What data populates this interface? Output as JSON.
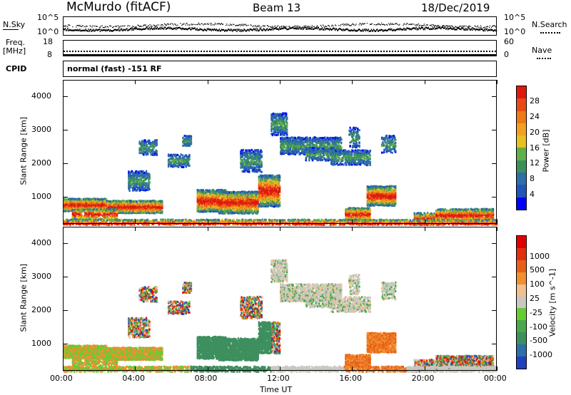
{
  "header": {
    "station": "McMurdo (fitACF)",
    "beam": "Beam 13",
    "date": "18/Dec/2019"
  },
  "top_panels": {
    "nsky_label": "N.Sky",
    "nsky_ticks": [
      "10^5",
      "10^0"
    ],
    "nsearch_label": "N.Search",
    "nsearch_ticks": [
      "10^5",
      "10^0"
    ],
    "freq_label_line1": "Freq.",
    "freq_label_line2": "[MHz]",
    "freq_ticks": [
      "18",
      "8"
    ],
    "nave_label": "Nave",
    "nave_ticks": [
      "60",
      "0"
    ],
    "cpid_label": "CPID",
    "cpid_text": "normal (fast) -151 RF"
  },
  "chart_data": [
    {
      "type": "heatmap",
      "name": "power",
      "ylabel": "Slant Range [km]",
      "yticks": [
        1000,
        2000,
        3000,
        4000
      ],
      "ylim": [
        180,
        4500
      ],
      "x_ticks": [
        "00:00",
        "04:00",
        "08:00",
        "12:00",
        "16:00",
        "20:00",
        "00:00"
      ],
      "xlim_hours": [
        0,
        24
      ],
      "colorbar": {
        "label": "Power [dB]",
        "ticks": [
          "4",
          "8",
          "12",
          "16",
          "20",
          "24",
          "28"
        ],
        "colors": [
          "#0000ff",
          "#2255bb",
          "#2f6fa8",
          "#3e8f5e",
          "#5fb04a",
          "#e8c020",
          "#f2a020",
          "#ef7818",
          "#e84a14",
          "#dd1a10"
        ]
      }
    },
    {
      "type": "heatmap",
      "name": "velocity",
      "ylabel": "Slant Range [km]",
      "yticks": [
        1000,
        2000,
        3000,
        4000
      ],
      "ylim": [
        180,
        4500
      ],
      "x_ticks": [
        "00:00",
        "04:00",
        "08:00",
        "12:00",
        "16:00",
        "20:00",
        "00:00"
      ],
      "xlim_hours": [
        0,
        24
      ],
      "xlabel": "Time UT",
      "colorbar": {
        "label": "Velocity [m s^-1]",
        "ticks": [
          "1000",
          "500",
          "100",
          "25",
          "-25",
          "-100",
          "-500",
          "-1000"
        ],
        "colors": [
          "#2040c0",
          "#2f6fa8",
          "#3e8f5e",
          "#4aa84a",
          "#66cc33",
          "#c8c8c0",
          "#f0c090",
          "#f09030",
          "#e86018",
          "#e03010",
          "#e00000"
        ]
      }
    }
  ]
}
